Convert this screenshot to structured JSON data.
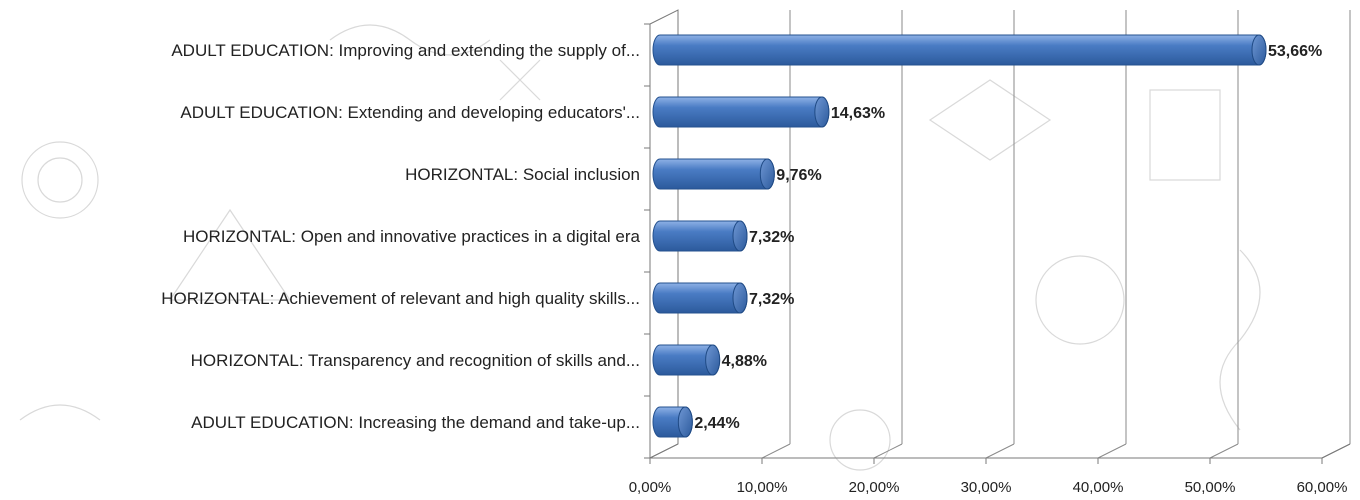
{
  "chart_data": {
    "type": "bar",
    "orientation": "horizontal",
    "categories": [
      "ADULT EDUCATION: Improving and extending the supply of...",
      "ADULT EDUCATION: Extending and developing educators'...",
      "HORIZONTAL: Social inclusion",
      "HORIZONTAL: Open and innovative practices  in a digital era",
      "HORIZONTAL: Achievement of relevant and high quality skills...",
      "HORIZONTAL: Transparency and recognition of skills and...",
      "ADULT EDUCATION: Increasing the demand and take-up..."
    ],
    "values": [
      53.66,
      14.63,
      9.76,
      7.32,
      7.32,
      4.88,
      2.44
    ],
    "value_labels": [
      "53,66%",
      "14,63%",
      "9,76%",
      "7,32%",
      "7,32%",
      "4,88%",
      "2,44%"
    ],
    "xlim": [
      0,
      60
    ],
    "ticks": [
      0,
      10,
      20,
      30,
      40,
      50,
      60
    ],
    "tick_labels": [
      "0,00%",
      "10,00%",
      "20,00%",
      "30,00%",
      "40,00%",
      "50,00%",
      "60,00%"
    ],
    "grid": true,
    "legend": "none",
    "style": "3d-cylinder",
    "colors": {
      "bar": "#4a7cc4",
      "bar_dark": "#2c5a9c",
      "bar_light": "#8fb2e6"
    }
  }
}
